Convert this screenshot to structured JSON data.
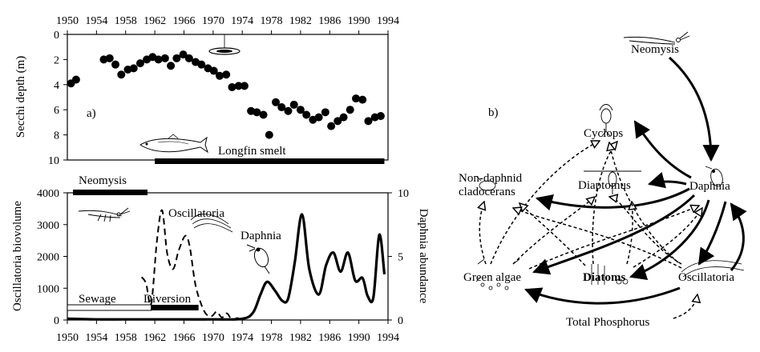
{
  "chart_data": [
    {
      "type": "scatter",
      "panel_label": "a)",
      "ylabel": "Secchi depth (m)",
      "x_ticks": [
        1950,
        1954,
        1958,
        1962,
        1966,
        1970,
        1974,
        1978,
        1982,
        1986,
        1990,
        1994
      ],
      "y_ticks": [
        0,
        2,
        4,
        6,
        8,
        10
      ],
      "xlim": [
        1950,
        1994
      ],
      "ylim": [
        0,
        10
      ],
      "y_inverted": true,
      "x": [
        1950.5,
        1951.2,
        1955.0,
        1955.8,
        1956.6,
        1957.4,
        1958.3,
        1959.1,
        1960.0,
        1960.9,
        1961.7,
        1962.5,
        1963.4,
        1964.2,
        1965.0,
        1965.9,
        1966.7,
        1967.6,
        1968.4,
        1969.3,
        1970.1,
        1970.9,
        1971.8,
        1972.6,
        1973.5,
        1974.3,
        1975.2,
        1976.0,
        1976.9,
        1977.7,
        1978.6,
        1979.4,
        1980.3,
        1981.1,
        1982.0,
        1982.8,
        1983.7,
        1984.5,
        1985.4,
        1986.2,
        1987.1,
        1987.9,
        1988.8,
        1989.6,
        1990.5,
        1991.3,
        1992.2,
        1993.0
      ],
      "y": [
        3.9,
        3.6,
        2.0,
        1.9,
        2.4,
        3.2,
        2.8,
        2.7,
        2.3,
        2.0,
        1.8,
        2.0,
        1.9,
        2.5,
        1.9,
        1.6,
        1.9,
        2.2,
        2.4,
        2.7,
        2.9,
        3.3,
        3.2,
        4.2,
        4.1,
        4.1,
        6.1,
        6.2,
        6.4,
        8.0,
        5.4,
        5.8,
        6.1,
        5.6,
        6.0,
        6.4,
        6.8,
        6.6,
        6.2,
        7.3,
        6.9,
        6.6,
        6.0,
        5.1,
        5.2,
        6.9,
        6.6,
        6.5
      ],
      "annotations": [
        {
          "label": "Longfin smelt",
          "start": 1962,
          "end": 1993.5
        },
        {
          "label": "Neomysis",
          "start": 1951,
          "end": 1961
        }
      ]
    },
    {
      "type": "line",
      "ylabel": "Oscillatoria biovolume",
      "y2label": "Daphnia abundance",
      "x_ticks": [
        1950,
        1954,
        1958,
        1962,
        1966,
        1970,
        1974,
        1978,
        1982,
        1986,
        1990,
        1994
      ],
      "y_ticks": [
        0,
        1000,
        2000,
        3000,
        4000
      ],
      "y2_ticks": [
        0,
        5,
        10
      ],
      "xlim": [
        1950,
        1994
      ],
      "ylim": [
        0,
        4000
      ],
      "y2lim": [
        0,
        10
      ],
      "series": [
        {
          "name": "Oscillatoria",
          "style": "dashed",
          "axis": "left",
          "x": [
            1960.2,
            1960.8,
            1961.5,
            1962.3,
            1963.0,
            1963.7,
            1964.5,
            1965.3,
            1966.2,
            1966.8,
            1967.5,
            1968.2,
            1969.0,
            1969.8,
            1970.5,
            1971.2,
            1971.9,
            1972.6,
            1973.3,
            1974.0
          ],
          "y": [
            1350,
            1150,
            500,
            2500,
            3450,
            2100,
            1600,
            2200,
            2650,
            2300,
            1200,
            600,
            200,
            120,
            260,
            80,
            210,
            0,
            60,
            0
          ]
        },
        {
          "name": "Daphnia",
          "style": "solid",
          "axis": "right",
          "x": [
            1950.0,
            1954.0,
            1958.0,
            1962.0,
            1966.0,
            1970.0,
            1974.0,
            1975.5,
            1976.5,
            1977.4,
            1978.5,
            1979.5,
            1980.3,
            1981.2,
            1982.2,
            1983.2,
            1984.5,
            1985.5,
            1986.5,
            1987.5,
            1988.5,
            1989.5,
            1990.5,
            1991.2,
            1992.0,
            1992.8,
            1993.5
          ],
          "y": [
            0.1,
            0.05,
            0.05,
            0.05,
            0.05,
            0.05,
            0.1,
            0.6,
            2.0,
            3.0,
            2.3,
            1.5,
            1.7,
            4.5,
            8.3,
            4.0,
            2.0,
            4.3,
            5.3,
            3.8,
            5.3,
            3.1,
            3.3,
            1.9,
            1.8,
            6.7,
            3.6
          ]
        }
      ],
      "annotations": [
        {
          "label": "Sewage",
          "start": 1950,
          "end": 1961.5,
          "style": "open-bar"
        },
        {
          "label": "Diversion",
          "start": 1961.5,
          "end": 1968,
          "style": "filled-bar"
        },
        {
          "label": "Oscillatoria"
        },
        {
          "label": "Daphnia"
        }
      ]
    },
    {
      "type": "food-web-diagram",
      "panel_label": "b)",
      "nodes": [
        "Neomysis",
        "Cyclops",
        "Non-daphnid cladocerans",
        "Diaptomus",
        "Daphnia",
        "Green algae",
        "Diatoms",
        "Oscillatoria",
        "Total Phosphorus"
      ]
    }
  ],
  "panel_a": {
    "label": "a)",
    "ylabel": "Secchi depth (m)",
    "smelt_label": "Longfin smelt"
  },
  "panel_lower": {
    "ylabel_left": "Oscillatoria biovolume",
    "ylabel_right": "Daphnia abundance",
    "neomysis_label": "Neomysis",
    "oscillatoria_label": "Oscillatoria",
    "daphnia_label": "Daphnia",
    "sewage_label": "Sewage",
    "diversion_label": "Diversion"
  },
  "panel_b": {
    "label": "b)",
    "neomysis": "Neomysis",
    "cyclops": "Cyclops",
    "nondaphnid_1": "Non-daphnid",
    "nondaphnid_2": "cladocerans",
    "diaptomus": "Diaptomus",
    "daphnia": "Daphnia",
    "green_algae": "Green algae",
    "diatoms": "Diatoms",
    "oscillatoria": "Oscillatoria",
    "phosphorus": "Total Phosphorus"
  }
}
